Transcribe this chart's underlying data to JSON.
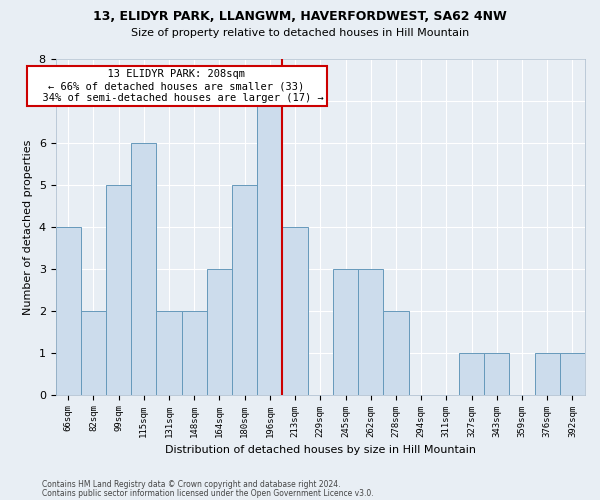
{
  "title1": "13, ELIDYR PARK, LLANGWM, HAVERFORDWEST, SA62 4NW",
  "title2": "Size of property relative to detached houses in Hill Mountain",
  "xlabel": "Distribution of detached houses by size in Hill Mountain",
  "ylabel": "Number of detached properties",
  "footer1": "Contains HM Land Registry data © Crown copyright and database right 2024.",
  "footer2": "Contains public sector information licensed under the Open Government Licence v3.0.",
  "categories": [
    "66sqm",
    "82sqm",
    "99sqm",
    "115sqm",
    "131sqm",
    "148sqm",
    "164sqm",
    "180sqm",
    "196sqm",
    "213sqm",
    "229sqm",
    "245sqm",
    "262sqm",
    "278sqm",
    "294sqm",
    "311sqm",
    "327sqm",
    "343sqm",
    "359sqm",
    "376sqm",
    "392sqm"
  ],
  "values": [
    4,
    2,
    5,
    6,
    2,
    2,
    3,
    5,
    7,
    4,
    0,
    3,
    3,
    2,
    0,
    0,
    1,
    1,
    0,
    1,
    1
  ],
  "bar_color": "#ccdcec",
  "bar_edge_color": "#6699bb",
  "property_label": "13 ELIDYR PARK: 208sqm",
  "pct_smaller": 66,
  "n_smaller": 33,
  "pct_larger": 34,
  "n_larger": 17,
  "vline_position": 8.5,
  "ylim_max": 8,
  "annotation_box_color": "#ffffff",
  "annotation_box_edge": "#cc0000",
  "vline_color": "#cc0000",
  "background_color": "#e8eef4",
  "grid_color": "#ffffff"
}
